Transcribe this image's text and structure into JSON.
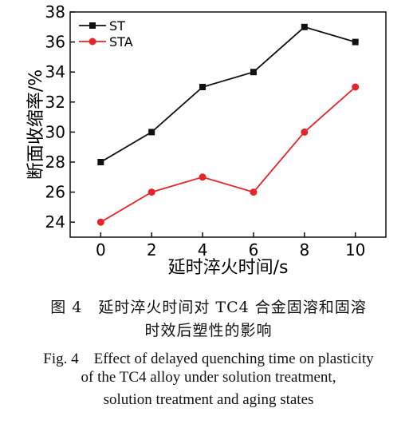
{
  "chart_data": {
    "type": "line",
    "x": [
      0,
      2,
      4,
      6,
      8,
      10
    ],
    "xlabel": "延时淬火时间/s",
    "ylabel": "断面收缩率/%",
    "xlim": [
      -1.2,
      11.2
    ],
    "ylim": [
      23,
      38
    ],
    "xticks": [
      0,
      2,
      4,
      6,
      8,
      10
    ],
    "yticks": [
      24,
      26,
      28,
      30,
      32,
      34,
      36,
      38
    ],
    "grid": false,
    "legend_position": "top-left",
    "series": [
      {
        "name": "ST",
        "values": [
          28,
          30,
          33,
          34,
          37,
          36
        ],
        "color": "#111111",
        "marker": "square"
      },
      {
        "name": "STA",
        "values": [
          24,
          26,
          27,
          26,
          30,
          33
        ],
        "color": "#e8242b",
        "marker": "circle"
      }
    ]
  },
  "caption": {
    "cn_line1": "图 4　延时淬火时间对 TC4 合金固溶和固溶",
    "cn_line2": "时效后塑性的影响",
    "en_line1": "Fig. 4　Effect of delayed quenching time on plasticity",
    "en_line2": "of the TC4 alloy under solution treatment,",
    "en_line3": "solution treatment and aging states"
  }
}
